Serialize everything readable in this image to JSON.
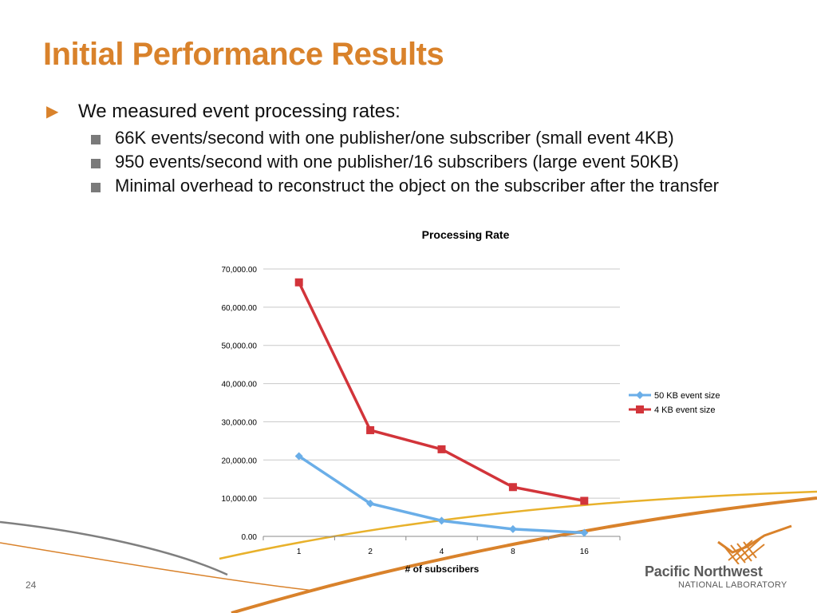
{
  "slide": {
    "title": "Initial Performance Results",
    "title_color": "#d9822b",
    "page_number": "24"
  },
  "bullets": {
    "main": {
      "marker_icon": "triangle-right-icon",
      "marker_color": "#d9822b",
      "text": "We measured event processing rates:"
    },
    "sub": [
      {
        "text": "66K events/second with one publisher/one subscriber (small event 4KB)"
      },
      {
        "text": "950 events/second with one publisher/16 subscribers (large event 50KB)"
      },
      {
        "text": "Minimal overhead to reconstruct the object on the subscriber after the transfer"
      }
    ]
  },
  "logo": {
    "name": "Pacific Northwest",
    "subtitle": "NATIONAL LABORATORY"
  },
  "chart_data": {
    "type": "line",
    "title": "Processing Rate",
    "xlabel": "# of subscribers",
    "ylabel": "",
    "categories": [
      "1",
      "2",
      "4",
      "8",
      "16"
    ],
    "ylim": [
      0,
      70000
    ],
    "yticks": [
      0,
      10000,
      20000,
      30000,
      40000,
      50000,
      60000,
      70000
    ],
    "ytick_labels": [
      "0.00",
      "10,000.00",
      "20,000.00",
      "30,000.00",
      "40,000.00",
      "50,000.00",
      "60,000.00",
      "70,000.00"
    ],
    "grid": true,
    "legend_position": "right",
    "series": [
      {
        "name": "50 KB event size",
        "color": "#6aaee8",
        "marker": "diamond",
        "values": [
          21000,
          8600,
          4100,
          1900,
          950
        ]
      },
      {
        "name": "4 KB event size",
        "color": "#d2343a",
        "marker": "square",
        "values": [
          66500,
          27800,
          22800,
          12900,
          9300
        ]
      }
    ]
  }
}
